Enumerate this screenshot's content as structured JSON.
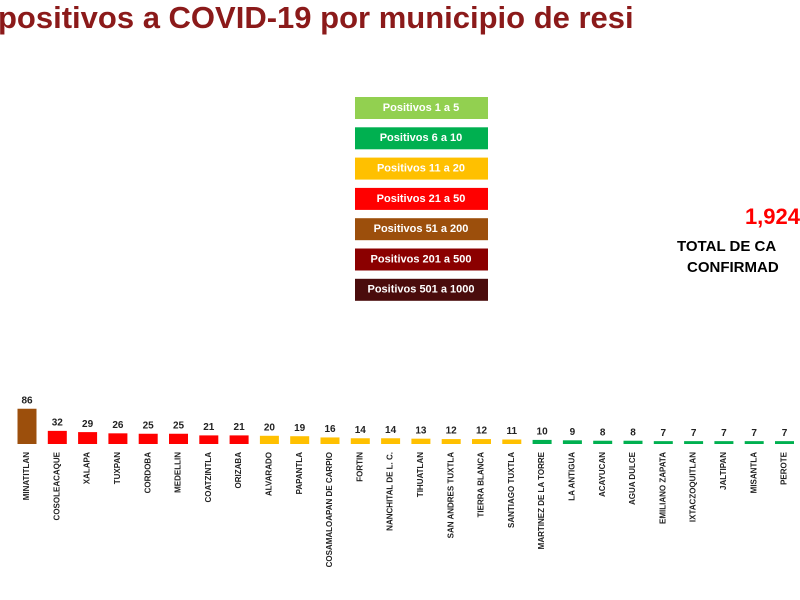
{
  "chart_data": {
    "type": "bar",
    "title": "positivos a COVID-19  por municipio de resi",
    "legend": [
      {
        "label": "Positivos 1 a 5",
        "color": "#92d050"
      },
      {
        "label": "Positivos 6 a 10",
        "color": "#00b050"
      },
      {
        "label": "Positivos 11 a 20",
        "color": "#ffc000"
      },
      {
        "label": "Positivos 21 a 50",
        "color": "#ff0000"
      },
      {
        "label": "Positivos 51 a 200",
        "color": "#9c4f0c"
      },
      {
        "label": "Positivos 201 a 500",
        "color": "#8b0000"
      },
      {
        "label": "Positivos 501 a 1000",
        "color": "#4a0c0c"
      }
    ],
    "total": "1,924",
    "total_label": [
      "TOTAL DE CA",
      "CONFIRMAD"
    ],
    "categories": [
      "MINATITLAN",
      "COSOLEACAQUE",
      "XALAPA",
      "TUXPAN",
      "CORDOBA",
      "MEDELLIN",
      "COATZINTLA",
      "ORIZABA",
      "ALVARADO",
      "PAPANTLA",
      "COSAMALOAPAN DE CARPIO",
      "FORTIN",
      "NANCHITAL DE L. C.",
      "TIHUATLAN",
      "SAN ANDRES TUXTLA",
      "TIERRA BLANCA",
      "SANTIAGO TUXTLA",
      "MARTINEZ DE LA TORRE",
      "LA ANTIGUA",
      "ACAYUCAN",
      "AGUA DULCE",
      "EMILIANO ZAPATA",
      "IXTACZOQUITLAN",
      "JALTIPAN",
      "MISANTLA",
      "PEROTE"
    ],
    "values": [
      86,
      32,
      29,
      26,
      25,
      25,
      21,
      21,
      20,
      19,
      16,
      14,
      14,
      13,
      12,
      12,
      11,
      10,
      9,
      8,
      8,
      7,
      7,
      7,
      7,
      7
    ],
    "colors": [
      "#9c4f0c",
      "#ff0000",
      "#ff0000",
      "#ff0000",
      "#ff0000",
      "#ff0000",
      "#ff0000",
      "#ff0000",
      "#ffc000",
      "#ffc000",
      "#ffc000",
      "#ffc000",
      "#ffc000",
      "#ffc000",
      "#ffc000",
      "#ffc000",
      "#ffc000",
      "#00b050",
      "#00b050",
      "#00b050",
      "#00b050",
      "#00b050",
      "#00b050",
      "#00b050",
      "#00b050",
      "#00b050"
    ]
  }
}
